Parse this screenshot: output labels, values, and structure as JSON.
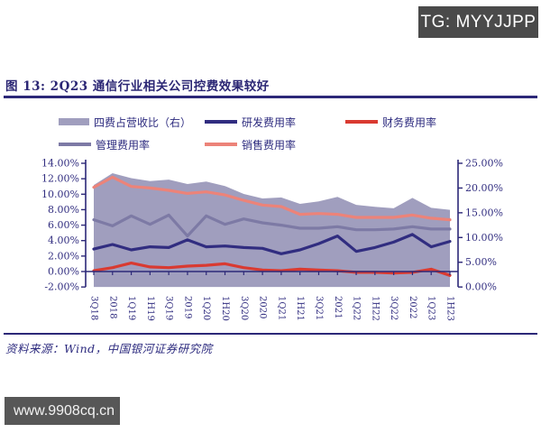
{
  "header": {
    "tg_label": "TG: MYYJJPP"
  },
  "figure": {
    "title": "图 13: 2Q23 通信行业相关公司控费效果较好",
    "source": "资料来源：Wind，中国银河证券研究院"
  },
  "watermark": {
    "url_label": "www.9908cq.cn"
  },
  "chart_data": {
    "type": "area+line combo, dual y-axis",
    "legend_position": "top",
    "grid": false,
    "categories": [
      "3Q18",
      "2018",
      "1Q19",
      "1H19",
      "3Q19",
      "2019",
      "1Q20",
      "1H20",
      "3Q20",
      "2020",
      "1Q21",
      "1H21",
      "3Q21",
      "2021",
      "1Q22",
      "1H22",
      "3Q22",
      "2022",
      "1Q23",
      "1H23"
    ],
    "left_axis": {
      "min": -2,
      "max": 14,
      "ticks": [
        {
          "v": 14,
          "label": "14.00%"
        },
        {
          "v": 12,
          "label": "12.00%"
        },
        {
          "v": 10,
          "label": "10.00%"
        },
        {
          "v": 8,
          "label": "8.00%"
        },
        {
          "v": 6,
          "label": "6.00%"
        },
        {
          "v": 4,
          "label": "4.00%"
        },
        {
          "v": 2,
          "label": "2.00%"
        },
        {
          "v": 0,
          "label": "0.00%"
        },
        {
          "v": -2,
          "label": "-2.00%"
        }
      ]
    },
    "right_axis": {
      "min": 0,
      "max": 25,
      "ticks": [
        {
          "v": 25,
          "label": "25.00%"
        },
        {
          "v": 20,
          "label": "20.00%"
        },
        {
          "v": 15,
          "label": "15.00%"
        },
        {
          "v": 10,
          "label": "10.00%"
        },
        {
          "v": 5,
          "label": "5.00%"
        },
        {
          "v": 0,
          "label": "0.00%"
        }
      ]
    },
    "series": [
      {
        "name": "四费占营收比（右）",
        "type": "area",
        "axis": "right",
        "color": "#a09ebe",
        "values": [
          20.6,
          23.0,
          22.0,
          21.4,
          21.7,
          20.8,
          21.3,
          20.4,
          18.8,
          17.9,
          18.1,
          16.8,
          17.3,
          18.2,
          16.6,
          16.2,
          15.9,
          18.0,
          16.0,
          15.6
        ]
      },
      {
        "name": "研发费用率",
        "type": "line",
        "axis": "left",
        "color": "#312d80",
        "values": [
          2.9,
          3.5,
          2.8,
          3.2,
          3.1,
          4.1,
          3.2,
          3.3,
          3.1,
          3.0,
          2.3,
          2.8,
          3.6,
          4.6,
          2.6,
          3.1,
          3.8,
          4.8,
          3.2,
          3.9
        ]
      },
      {
        "name": "财务费用率",
        "type": "line",
        "axis": "left",
        "color": "#d93a31",
        "values": [
          0.1,
          0.5,
          1.1,
          0.6,
          0.5,
          0.7,
          0.8,
          1.0,
          0.5,
          0.2,
          0.1,
          0.3,
          0.2,
          0.1,
          -0.1,
          -0.1,
          -0.2,
          -0.1,
          0.3,
          -0.5
        ]
      },
      {
        "name": "管理费用率",
        "type": "line",
        "axis": "left",
        "color": "#7d7aa5",
        "values": [
          6.7,
          5.9,
          7.2,
          6.1,
          7.3,
          4.6,
          7.2,
          6.1,
          6.8,
          6.3,
          6.0,
          5.6,
          5.6,
          5.8,
          5.4,
          5.4,
          5.5,
          5.8,
          5.5,
          5.5
        ]
      },
      {
        "name": "销售费用率",
        "type": "line",
        "axis": "left",
        "color": "#ec8379",
        "values": [
          10.9,
          12.2,
          11.0,
          10.8,
          10.5,
          10.1,
          10.3,
          9.9,
          9.2,
          8.6,
          8.4,
          7.4,
          7.5,
          7.4,
          7.0,
          7.0,
          7.0,
          7.3,
          6.9,
          6.7
        ]
      }
    ]
  }
}
